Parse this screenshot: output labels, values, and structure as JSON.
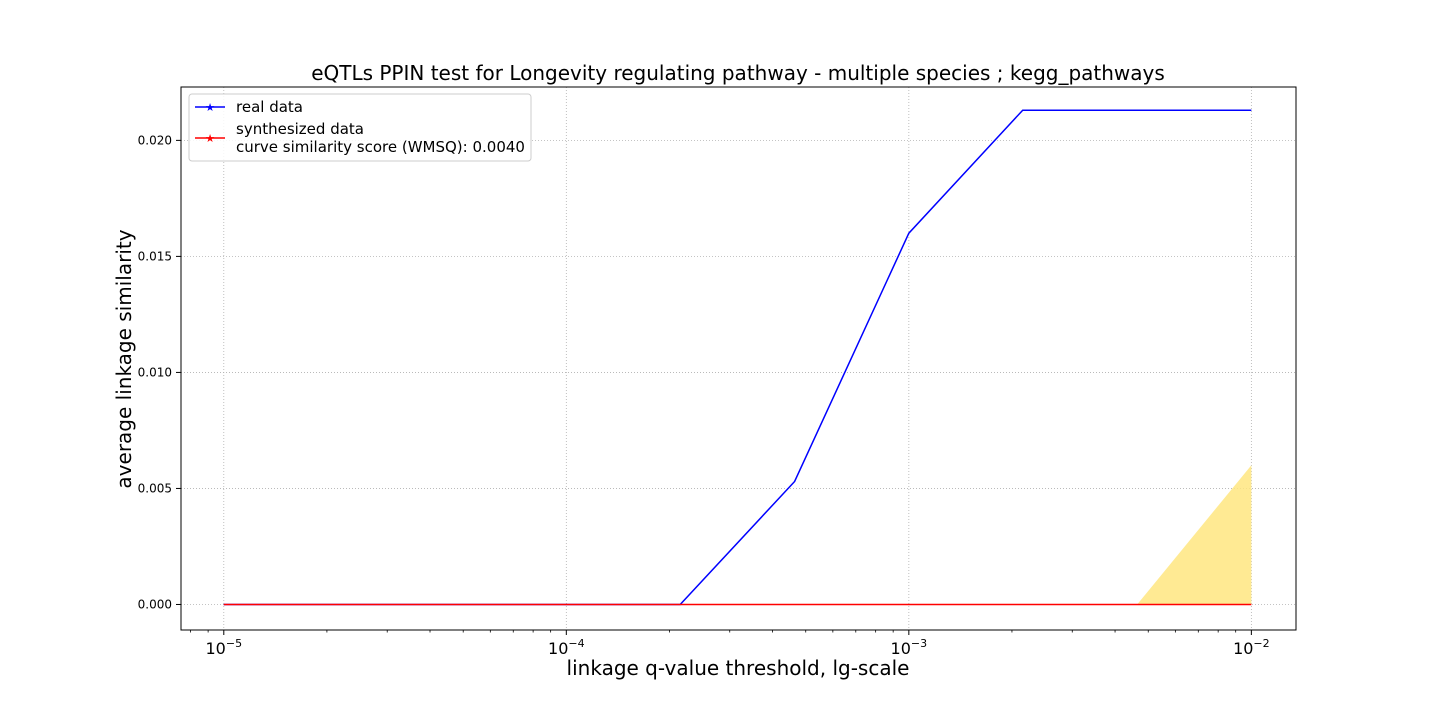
{
  "chart_data": {
    "type": "line",
    "title": "eQTLs PPIN test for Longevity regulating pathway - multiple species ; kegg_pathways",
    "xlabel": "linkage q-value threshold, lg-scale",
    "ylabel": "average linkage similarity",
    "xscale": "log",
    "xlim": [
      7.5e-06,
      0.0135
    ],
    "ylim": [
      -0.0011,
      0.0223
    ],
    "grid": true,
    "legend_position": "top-left",
    "x_ticks": [
      {
        "value": 1e-05,
        "base": "10",
        "exp": "−5"
      },
      {
        "value": 0.0001,
        "base": "10",
        "exp": "−4"
      },
      {
        "value": 0.001,
        "base": "10",
        "exp": "−3"
      },
      {
        "value": 0.01,
        "base": "10",
        "exp": "−2"
      }
    ],
    "y_ticks": [
      {
        "value": 0.0,
        "label": "0.000"
      },
      {
        "value": 0.005,
        "label": "0.005"
      },
      {
        "value": 0.01,
        "label": "0.010"
      },
      {
        "value": 0.015,
        "label": "0.015"
      },
      {
        "value": 0.02,
        "label": "0.020"
      }
    ],
    "x": [
      1e-05,
      2.15e-05,
      4.64e-05,
      0.0001,
      0.000215,
      0.000464,
      0.001,
      0.00215,
      0.00464,
      0.01
    ],
    "series": [
      {
        "name": "real data",
        "color": "#0000ff",
        "values": [
          0,
          0,
          0,
          0,
          0,
          0.0053,
          0.016,
          0.0213,
          0.0213,
          0.0213
        ]
      },
      {
        "name": "synthesized data",
        "color": "#ff0000",
        "values": [
          0,
          0,
          0,
          0,
          0,
          0,
          0,
          0,
          0,
          0
        ]
      }
    ],
    "band": {
      "color": "#ffe680",
      "x": [
        0.00464,
        0.01
      ],
      "lower": [
        0,
        0
      ],
      "upper": [
        0,
        0.006
      ]
    },
    "legend": {
      "entries": [
        "real data",
        "synthesized data"
      ],
      "extra_line": "curve similarity score (WMSQ): 0.0040"
    }
  }
}
